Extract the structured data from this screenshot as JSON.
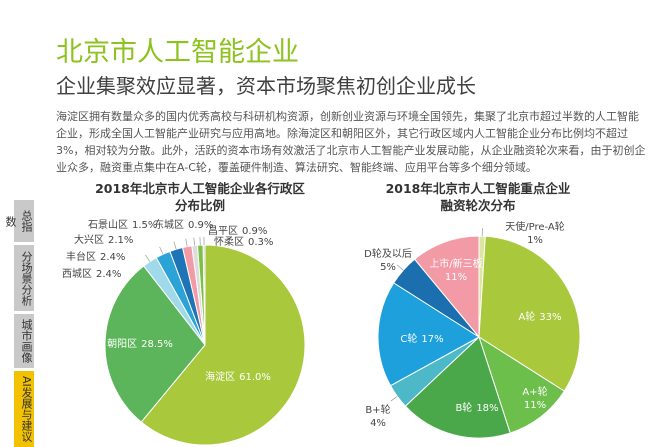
{
  "header": {
    "title": "北京市人工智能企业",
    "subtitle": "企业集聚效应显著，资本市场聚焦初创企业成长",
    "body": "海淀区拥有数量众多的国内优秀高校与科研机构资源，创新创业资源与环境全国领先，集聚了北京市超过半数的人工智能企业，形成全国人工智能产业研究与应用高地。除海淀区和朝阳区外，其它行政区域内人工智能企业分布比例均不超过3%，相对较为分散。此外，活跃的资本市场有效激活了北京市人工智能产业发展动能，从企业融资轮次来看，由于初创企业众多，融资重点集中在A-C轮，覆盖硬件制造、算法研究、智能终端、应用平台等多个细分领域。"
  },
  "sidebar": {
    "tabs": [
      "总指数",
      "分场景分析",
      "城市画像",
      "AI发展与建议"
    ]
  },
  "chart_data": [
    {
      "type": "pie",
      "title": [
        "2018年北京市人工智能企业各行政区",
        "分布比例"
      ],
      "categories": [
        "海淀区",
        "朝阳区",
        "西城区",
        "丰台区",
        "大兴区",
        "石景山区",
        "东城区",
        "昌平区",
        "怀柔区"
      ],
      "values": [
        61.0,
        28.5,
        2.4,
        2.4,
        2.1,
        1.5,
        0.9,
        0.9,
        0.3
      ],
      "value_labels": [
        "61.0%",
        "28.5%",
        "2.4%",
        "2.4%",
        "2.1%",
        "1.5%",
        "0.9%",
        "0.9%",
        "0.3%"
      ],
      "colors": [
        "#a9c83c",
        "#5cb55a",
        "#9fd9ea",
        "#2ba3d6",
        "#1e74b6",
        "#f29aa6",
        "#dcdcdc",
        "#7ac143",
        "#c8c8c8"
      ]
    },
    {
      "type": "pie",
      "title": [
        "2018年北京市人工智能重点企业",
        "融资轮次分布"
      ],
      "categories": [
        "天使/Pre-A轮",
        "A轮",
        "A+轮",
        "B轮",
        "B+轮",
        "C轮",
        "D轮及以后",
        "上市/新三板"
      ],
      "values": [
        1,
        33,
        11,
        18,
        4,
        17,
        5,
        11
      ],
      "value_labels": [
        "1%",
        "33%",
        "11%",
        "18%",
        "4%",
        "17%",
        "5%",
        "11%"
      ],
      "colors": [
        "#d9e7a3",
        "#a9c83c",
        "#6cbf4a",
        "#4aa84a",
        "#4db8c8",
        "#1ea0dc",
        "#1b6fae",
        "#f29aa6"
      ]
    }
  ]
}
